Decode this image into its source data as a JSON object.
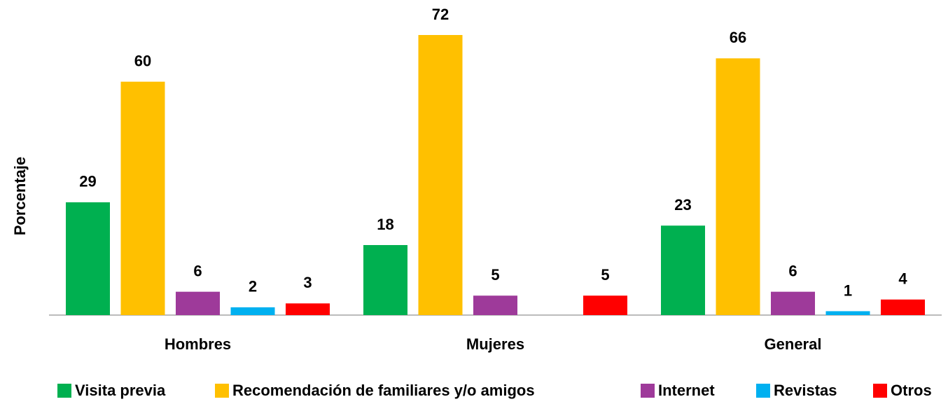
{
  "chart_data": {
    "type": "bar",
    "ylabel": "Porcentaje",
    "categories": [
      "Hombres",
      "Mujeres",
      "General"
    ],
    "series": [
      {
        "name": "Visita previa",
        "color": "#00b050",
        "values": [
          29,
          18,
          23
        ]
      },
      {
        "name": "Recomendación de familiares y/o amigos",
        "color": "#ffc000",
        "values": [
          60,
          72,
          66
        ]
      },
      {
        "name": "Internet",
        "color": "#9e3a9a",
        "values": [
          6,
          5,
          6
        ]
      },
      {
        "name": "Revistas",
        "color": "#00b0f0",
        "values": [
          2,
          null,
          1
        ]
      },
      {
        "name": "Otros",
        "color": "#ff0000",
        "values": [
          3,
          5,
          4
        ]
      }
    ],
    "legend": "bottom"
  }
}
